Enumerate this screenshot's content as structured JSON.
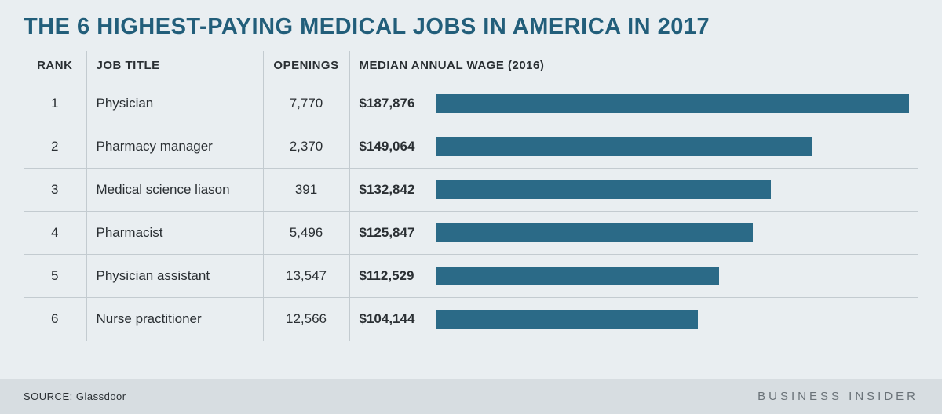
{
  "title": "THE 6 HIGHEST-PAYING MEDICAL JOBS IN AMERICA IN 2017",
  "title_fontsize": 29,
  "title_color": "#225e7a",
  "background_color": "#e9eef1",
  "footer_background": "#d7dde1",
  "border_color": "#c3cbd0",
  "text_color": "#2a2f33",
  "header_fontsize": 15,
  "cell_fontsize": 17,
  "columns": {
    "rank": "RANK",
    "job": "JOB TITLE",
    "openings": "OPENINGS",
    "wage": "MEDIAN ANNUAL WAGE (2016)"
  },
  "bar_color": "#2b6a87",
  "bar_max_value": 187876,
  "rows": [
    {
      "rank": "1",
      "job": "Physician",
      "openings": "7,770",
      "wage_label": "$187,876",
      "wage_value": 187876
    },
    {
      "rank": "2",
      "job": "Pharmacy manager",
      "openings": "2,370",
      "wage_label": "$149,064",
      "wage_value": 149064
    },
    {
      "rank": "3",
      "job": "Medical science liason",
      "openings": "391",
      "wage_label": "$132,842",
      "wage_value": 132842
    },
    {
      "rank": "4",
      "job": "Pharmacist",
      "openings": "5,496",
      "wage_label": "$125,847",
      "wage_value": 125847
    },
    {
      "rank": "5",
      "job": "Physician assistant",
      "openings": "13,547",
      "wage_label": "$112,529",
      "wage_value": 112529
    },
    {
      "rank": "6",
      "job": "Nurse practitioner",
      "openings": "12,566",
      "wage_label": "$104,144",
      "wage_value": 104144
    }
  ],
  "source_label": "SOURCE:",
  "source_value": "Glassdoor",
  "source_fontsize": 13,
  "brand": "BUSINESS INSIDER",
  "brand_fontsize": 15,
  "brand_color": "#6a7278"
}
